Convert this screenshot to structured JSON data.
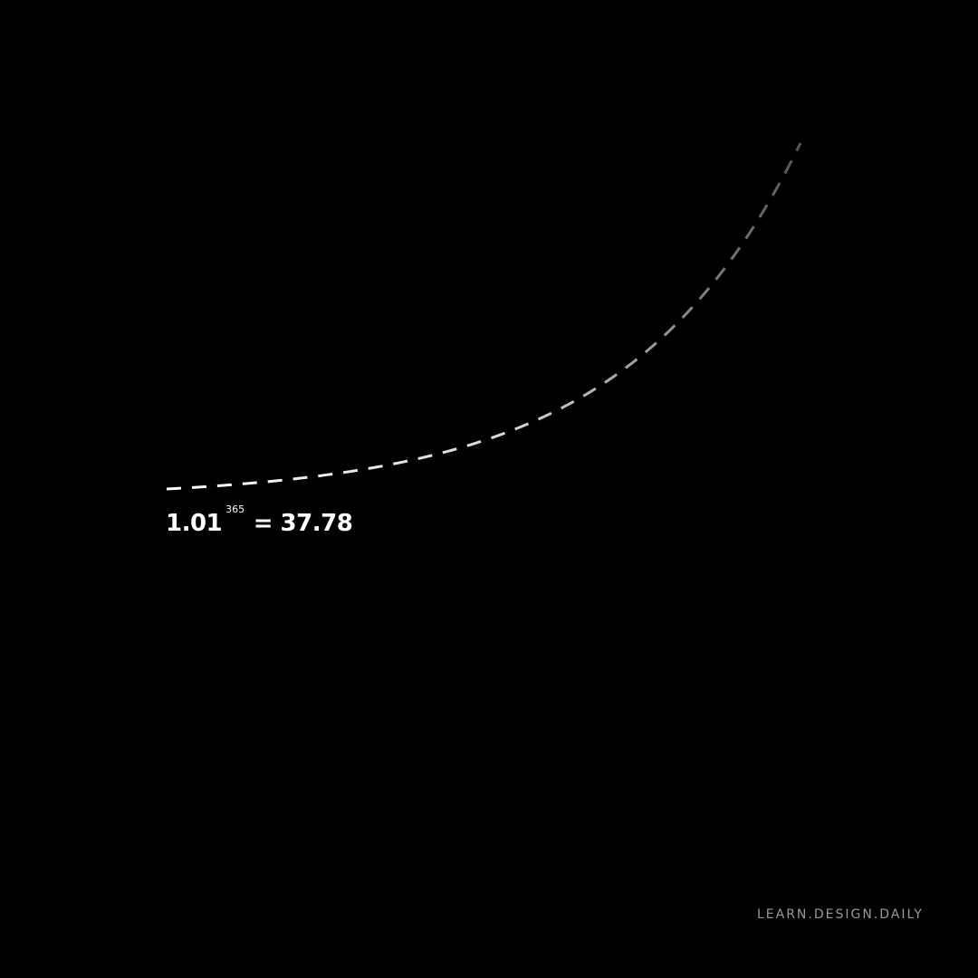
{
  "formula": {
    "base": "1.01",
    "exponent": "365",
    "result": "= 37.78"
  },
  "watermark": "LEARN.DESIGN.DAILY",
  "colors": {
    "background": "#000000",
    "foreground": "#ffffff",
    "watermark": "#9a9a9a"
  },
  "chart_data": {
    "type": "line",
    "series": [
      {
        "function": "1.01^x",
        "x_range": [
          0,
          365
        ],
        "style": "dashed",
        "color_fade": "white-to-gray"
      }
    ],
    "baseline": {
      "value": 1,
      "style": "solid",
      "color_fade": "white-to-transparent"
    },
    "xlim": [
      0,
      365
    ],
    "ylim": [
      1,
      37.78
    ],
    "grid": false,
    "title": "",
    "xlabel": "",
    "ylabel": ""
  }
}
